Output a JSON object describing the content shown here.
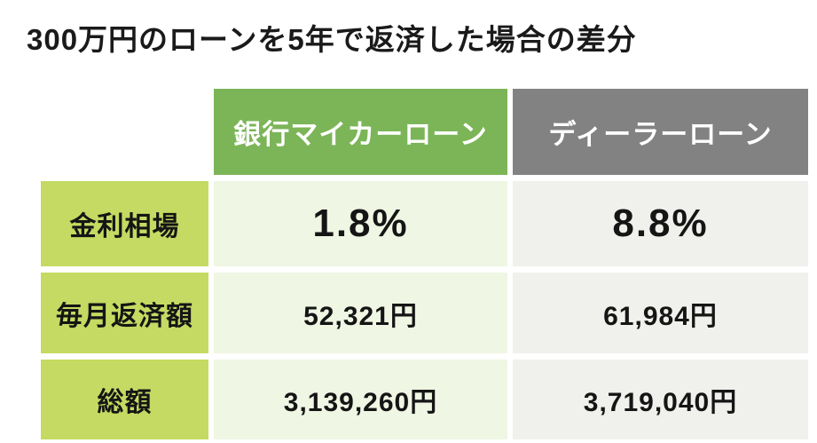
{
  "title": "300万円のローンを5年で返済した場合の差分",
  "table": {
    "columns": [
      {
        "label": "銀行マイカーローン",
        "header_bg": "#7CB558",
        "cell_bg": "#EFF6E3"
      },
      {
        "label": "ディーラーローン",
        "header_bg": "#828282",
        "cell_bg": "#F0F0EC"
      }
    ],
    "rows": [
      {
        "label": "金利相場",
        "bank": "1.8%",
        "dealer": "8.8%"
      },
      {
        "label": "毎月返済額",
        "bank": "52,321円",
        "dealer": "61,984円"
      },
      {
        "label": "総額",
        "bank": "3,139,260円",
        "dealer": "3,719,040円"
      }
    ]
  },
  "colors": {
    "title_text": "#1A1A1A",
    "header_text": "#FFFFFF",
    "row_label_bg": "#C4DA62",
    "body_text": "#151515",
    "page_bg": "#FFFFFF"
  },
  "chart_data": {
    "type": "table",
    "title": "300万円のローンを5年で返済した場合の差分",
    "columns": [
      "",
      "銀行マイカーローン",
      "ディーラーローン"
    ],
    "rows": [
      [
        "金利相場",
        "1.8%",
        "8.8%"
      ],
      [
        "毎月返済額",
        "52,321円",
        "61,984円"
      ],
      [
        "総額",
        "3,139,260円",
        "3,719,040円"
      ]
    ],
    "notes": {
      "loan_amount": "300万円",
      "repayment_period": "5年",
      "interest_rates_percent": [
        1.8,
        8.8
      ],
      "monthly_payment_yen": [
        52321,
        61984
      ],
      "total_payment_yen": [
        3139260,
        3719040
      ]
    }
  }
}
